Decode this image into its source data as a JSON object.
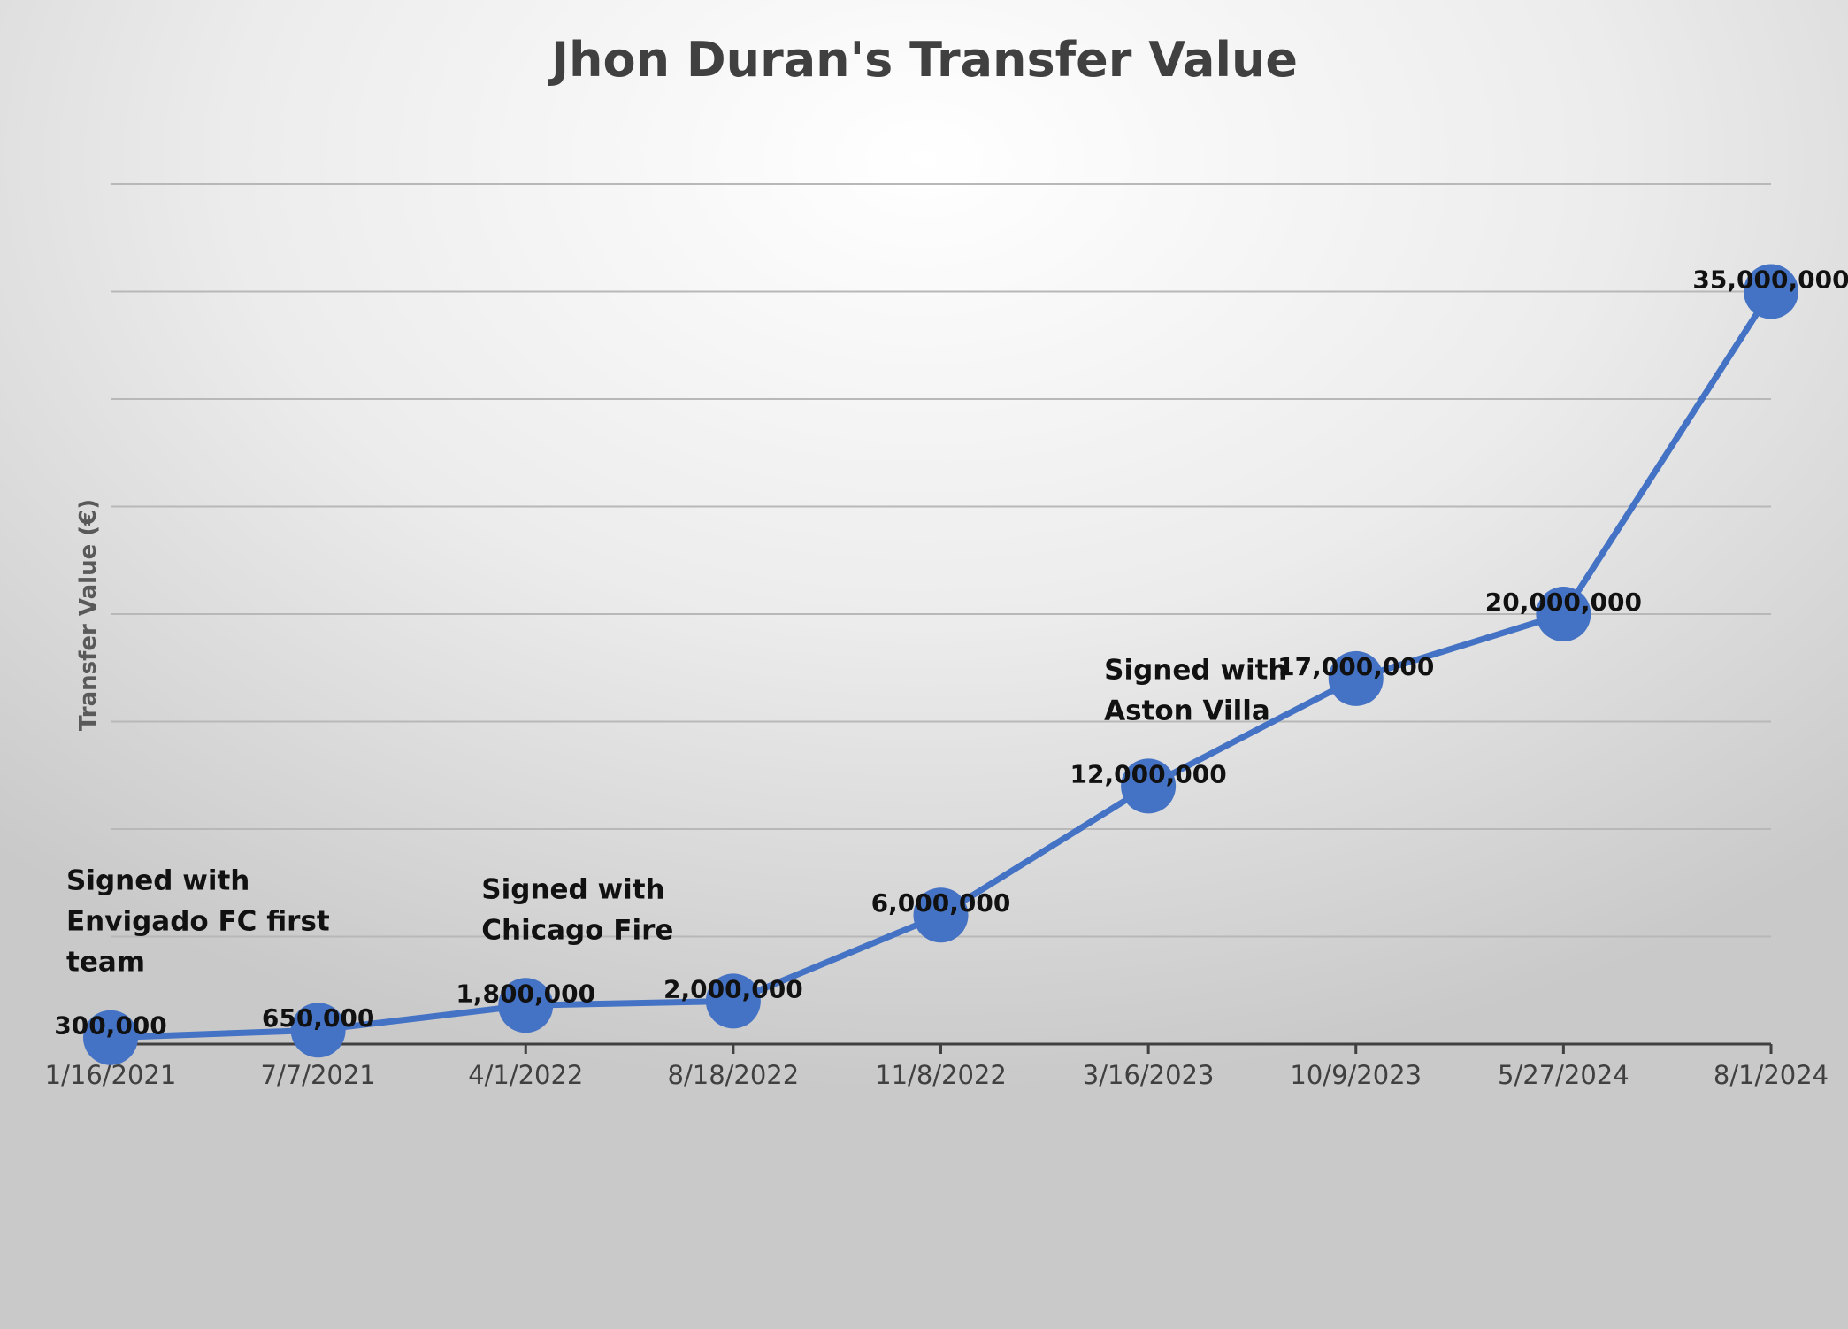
{
  "chart_data": {
    "type": "line",
    "title": "Jhon Duran's Transfer Value",
    "xlabel": "",
    "ylabel": "Transfer Value (€)",
    "x": [
      "1/16/2021",
      "7/7/2021",
      "4/1/2022",
      "8/18/2022",
      "11/8/2022",
      "3/16/2023",
      "10/9/2023",
      "5/27/2024",
      "8/1/2024"
    ],
    "values": [
      300000,
      650000,
      1800000,
      2000000,
      6000000,
      12000000,
      17000000,
      20000000,
      35000000
    ],
    "data_labels": [
      "300,000",
      "650,000",
      "1,800,000",
      "2,000,000",
      "6,000,000",
      "12,000,000",
      "17,000,000",
      "20,000,000",
      "35,000,000"
    ],
    "ylim": [
      0,
      40000000
    ],
    "y_tick_step": 5000000,
    "grid": true,
    "show_y_tick_labels": false,
    "legend": "none",
    "line_color": "#4472C4",
    "marker_color": "#4472C4",
    "annotations": [
      {
        "point_index": 0,
        "lines": [
          "Signed with",
          "Envigado FC first",
          "team"
        ]
      },
      {
        "point_index": 2,
        "lines": [
          "Signed with",
          "Chicago Fire"
        ]
      },
      {
        "point_index": 5,
        "lines": [
          "Signed with",
          "Aston Villa"
        ]
      }
    ]
  }
}
